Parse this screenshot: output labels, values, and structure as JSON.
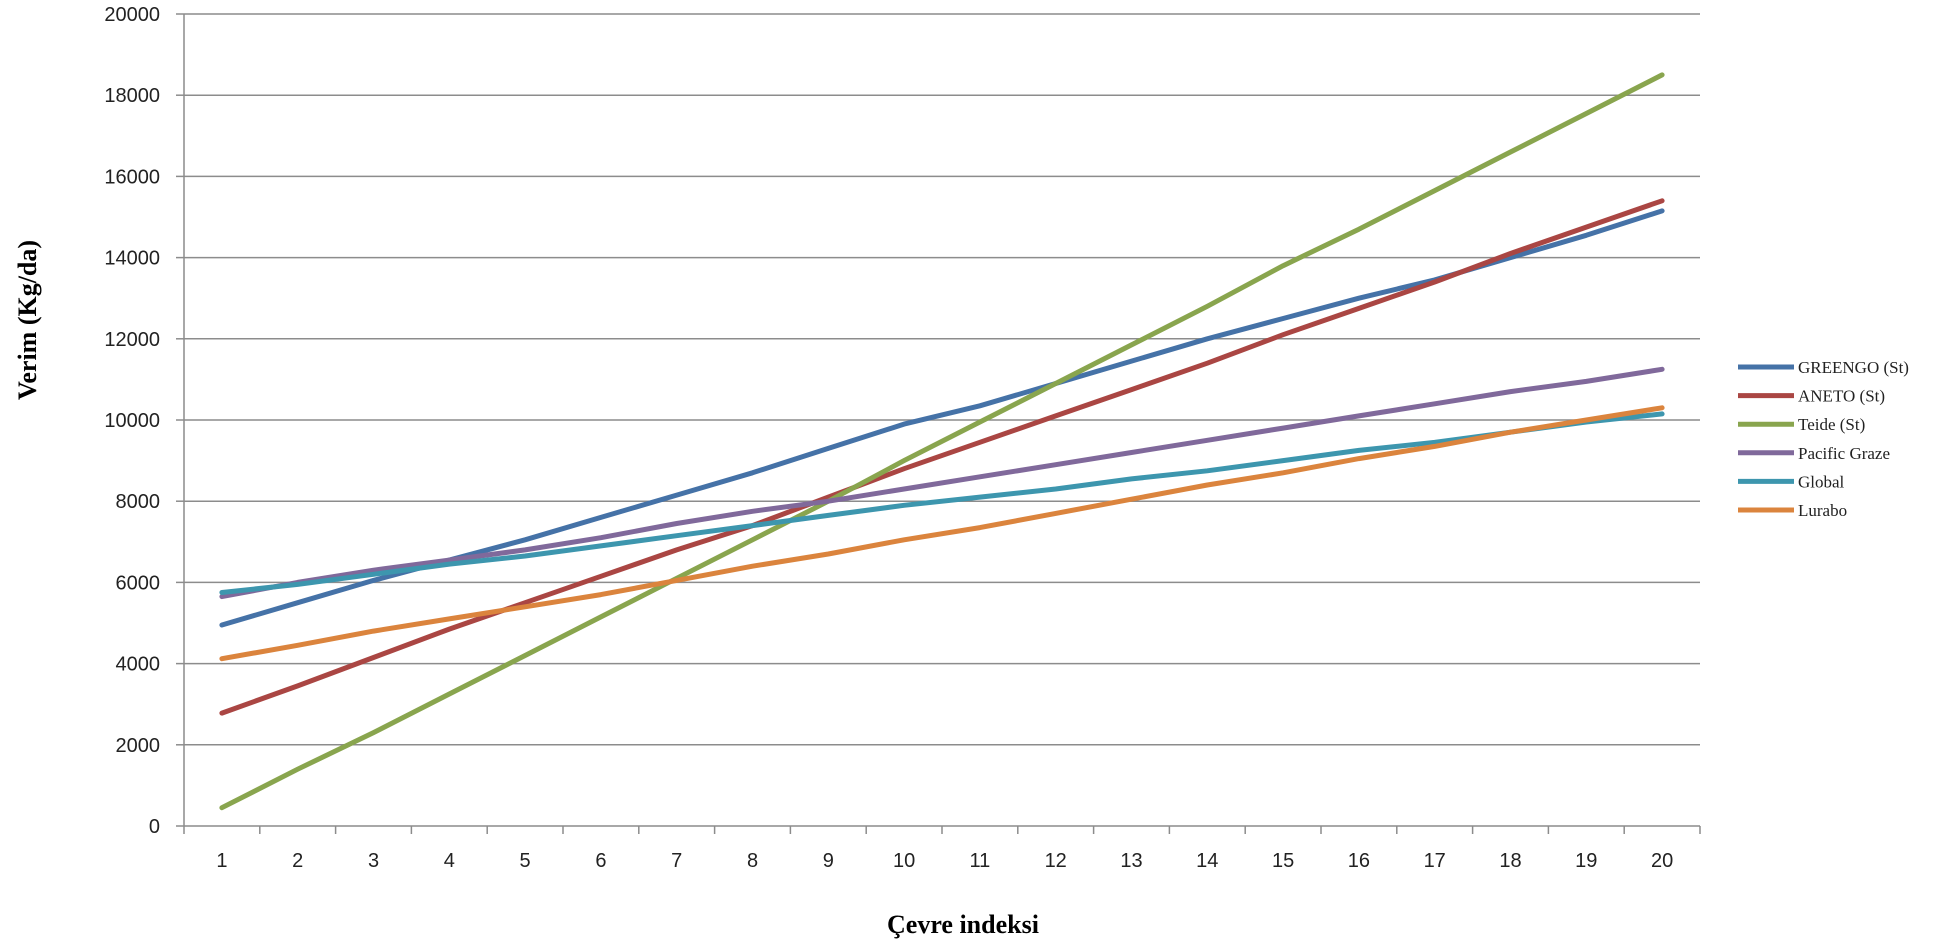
{
  "chart_data": {
    "type": "line",
    "xlabel": "Çevre indeksi",
    "ylabel": "Verim (Kg/da)",
    "x": [
      1,
      2,
      3,
      4,
      5,
      6,
      7,
      8,
      9,
      10,
      11,
      12,
      13,
      14,
      15,
      16,
      17,
      18,
      19,
      20
    ],
    "xlim": [
      0.5,
      20.5
    ],
    "ylim": [
      0,
      20000
    ],
    "yticks": [
      "0",
      "2000",
      "4000",
      "6000",
      "8000",
      "10000",
      "12000",
      "14000",
      "16000",
      "18000",
      "20000"
    ],
    "grid": true,
    "legend_position": "right",
    "series": [
      {
        "name": "GREENGO (St)",
        "color": "#4572A7",
        "values": [
          4950,
          5500,
          6050,
          6550,
          7050,
          7600,
          8150,
          8700,
          9300,
          9900,
          10350,
          10900,
          11450,
          12000,
          12500,
          13000,
          13450,
          14000,
          14550,
          15150
        ]
      },
      {
        "name": "ANETO (St)",
        "color": "#AA4643",
        "values": [
          2780,
          3450,
          4150,
          4850,
          5500,
          6150,
          6800,
          7400,
          8100,
          8800,
          9450,
          10100,
          10750,
          11400,
          12100,
          12750,
          13400,
          14100,
          14750,
          15400
        ]
      },
      {
        "name": "Teide (St)",
        "color": "#89A54E",
        "values": [
          450,
          1400,
          2300,
          3250,
          4200,
          5150,
          6100,
          7050,
          8000,
          9000,
          9950,
          10900,
          11850,
          12800,
          13800,
          14700,
          15650,
          16600,
          17550,
          18500
        ]
      },
      {
        "name": "Pacific Graze",
        "color": "#80699B",
        "values": [
          5650,
          6000,
          6300,
          6550,
          6800,
          7100,
          7450,
          7750,
          8000,
          8300,
          8600,
          8900,
          9200,
          9500,
          9800,
          10100,
          10400,
          10700,
          10950,
          11250
        ]
      },
      {
        "name": "Global",
        "color": "#3D96AE",
        "values": [
          5750,
          5950,
          6200,
          6450,
          6650,
          6900,
          7150,
          7400,
          7650,
          7900,
          8100,
          8300,
          8550,
          8750,
          9000,
          9250,
          9450,
          9700,
          9950,
          10150
        ]
      },
      {
        "name": "Lurabo",
        "color": "#DB843D",
        "values": [
          4120,
          4450,
          4800,
          5100,
          5400,
          5700,
          6050,
          6400,
          6700,
          7050,
          7350,
          7700,
          8050,
          8400,
          8700,
          9050,
          9350,
          9700,
          10000,
          10300
        ]
      }
    ]
  }
}
